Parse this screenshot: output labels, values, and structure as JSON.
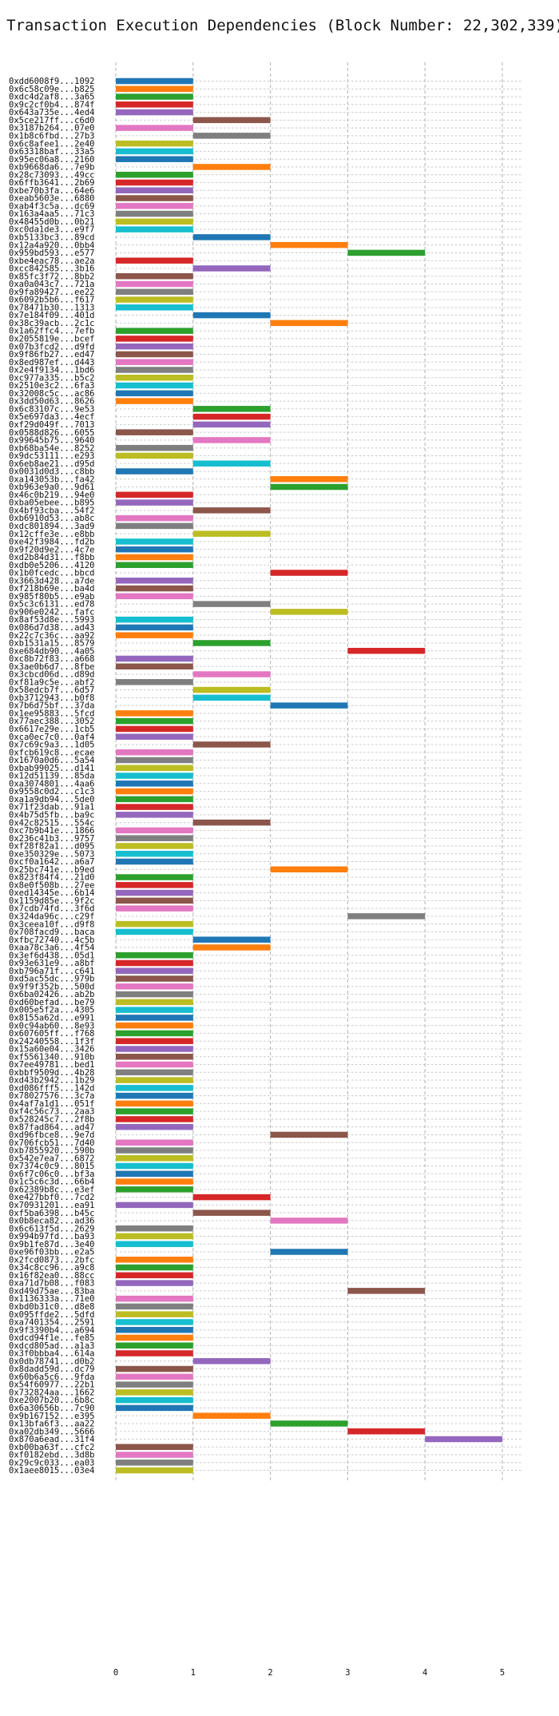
{
  "chart_data": {
    "type": "bar",
    "orientation": "horizontal",
    "title": "Transaction Execution Dependencies (Block Number: 22,302,339)",
    "xlabel": "",
    "ylabel": "",
    "xlim": [
      0,
      5
    ],
    "xticks": [
      0,
      1,
      2,
      3,
      4,
      5
    ],
    "grid": true,
    "palette": [
      "#1f77b4",
      "#ff7f0e",
      "#2ca02c",
      "#d62728",
      "#9467bd",
      "#8c564b",
      "#e377c2",
      "#7f7f7f",
      "#bcbd22",
      "#17becf"
    ],
    "categories": [
      "0xdd6008f9...1092",
      "0x6c58c09e...b825",
      "0xdc4d2af8...3a65",
      "0x9c2cf0b4...874f",
      "0x643a735e...4ed4",
      "0x5ce217ff...c6d0",
      "0x3187b264...07e0",
      "0x1b8c6fbd...27b3",
      "0x6c8afee1...2e40",
      "0x63318baf...33a5",
      "0x95ec06a8...2160",
      "0xb9668da6...7e9b",
      "0x28c73093...49cc",
      "0x6ffb3641...2b69",
      "0xbe70b3fa...64e6",
      "0xeab5603e...6880",
      "0xab4f3c5a...dc69",
      "0x163a4aa5...71c3",
      "0x48455d0b...0b21",
      "0xc0da1de3...e9f7",
      "0xb5133bc3...89cd",
      "0x12a4a920...0bb4",
      "0x959bd593...e577",
      "0xbe4eac78...ae2a",
      "0xcc842585...3b16",
      "0x85fc3f72...8bb2",
      "0xa0a043c7...721a",
      "0x9fa89427...ee22",
      "0x6092b5b6...f617",
      "0x78471b30...1313",
      "0x7e184f09...401d",
      "0x38c39acb...2c1c",
      "0x1a62ffc4...7efb",
      "0x2055819e...bcef",
      "0x07b3fcd2...d9fd",
      "0x9f86fb27...ed47",
      "0x8ed987ef...d443",
      "0x2e4f9134...1bd6",
      "0xc977a335...b5c2",
      "0x2510e3c2...6fa3",
      "0x32008c5c...ac86",
      "0x3dd50d63...8626",
      "0x6c83107c...9e53",
      "0x5e697da3...4ecf",
      "0xf29d049f...7013",
      "0x0588d826...6055",
      "0x99645b75...9640",
      "0xb68ba54e...8252",
      "0x9dc53111...e293",
      "0x6eb8ae21...d95d",
      "0x0031d0d3...c8bb",
      "0xa143053b...fa42",
      "0xb963e9a0...9d61",
      "0x46c0b219...94e0",
      "0xba05ebee...b895",
      "0x4bf93cba...54f2",
      "0xb6910d53...ab8c",
      "0xdc801894...3ad9",
      "0x12cffe3e...e8bb",
      "0xe42f3984...fd2b",
      "0x9f20d9e2...4c7e",
      "0xd2b84d31...f8bb",
      "0xdb0e5206...4120",
      "0x1b0fcedc...bbcd",
      "0x3663d428...a7de",
      "0xf218b69e...ba4d",
      "0x985f80b5...e9ab",
      "0x5c3c6131...ed78",
      "0x906e0242...fafc",
      "0x8af53d8e...5993",
      "0x086d7d38...ad43",
      "0x22c7c36c...aa92",
      "0xb1531a15...8579",
      "0xe684db90...4a05",
      "0xc8b72f83...a668",
      "0x3ae0b6d7...8fbe",
      "0x3cbcd06d...d89d",
      "0xf81a9c5e...abf2",
      "0x58edcb7f...6d57",
      "0xb3712943...b0f8",
      "0x7b6d75bf...37da",
      "0x1ee95883...5fcd",
      "0x77aec388...3052",
      "0x6617e29e...1cb5",
      "0xca0ec7c0...0af4",
      "0x7c69c9a3...1d05",
      "0xfcb619c8...ecae",
      "0x1670a0d6...5a54",
      "0xbab99025...d141",
      "0x12d51139...85da",
      "0xa3074801...4aa6",
      "0x9558c0d2...c1c3",
      "0xa1a9db94...5de0",
      "0x71f23dab...91a1",
      "0x4b75d5fb...ba9c",
      "0x42c82515...554c",
      "0xc7b9b41e...1866",
      "0x236c41b3...9757",
      "0xf28f82a1...d095",
      "0xe350329e...5073",
      "0xcf0a1642...a6a7",
      "0x25bc741e...b9ed",
      "0x823f84f4...21d0",
      "0x8e0f508b...27ee",
      "0xed14345e...6b14",
      "0x1159d85e...9f2c",
      "0x7cdb74fd...3f6d",
      "0x324da96c...c29f",
      "0x3ceea10f...d9f8",
      "0x708facd9...baca",
      "0xfbc72740...4c5b",
      "0xaa78c3a6...4f54",
      "0x3ef6d438...05d1",
      "0x93e631e9...a8bf",
      "0xb796a71f...c641",
      "0xd5ac55dc...979b",
      "0x9f9f352b...500d",
      "0x6ba02426...ab2b",
      "0xd60befad...be79",
      "0x005e5f2a...4305",
      "0x8155a62d...e991",
      "0x0c94ab60...8e93",
      "0x607605ff...f768",
      "0x24240558...1f3f",
      "0x15a60e04...3426",
      "0xf5561340...910b",
      "0x7ee49781...bed1",
      "0xbbf9509d...4b28",
      "0xd43b2942...1b29",
      "0xd086fff5...142d",
      "0x78027576...3c7a",
      "0x4af7a1d1...051f",
      "0xf4c56c73...2aa3",
      "0x528245c7...2f8b",
      "0x87fad864...ad47",
      "0xd96fbce8...9e7d",
      "0x706fcb51...7d40",
      "0xb7855920...590b",
      "0x542e7ea7...6872",
      "0x7374c0c9...8015",
      "0x6f7c06c0...bf3a",
      "0x1c5c6c3d...66b4",
      "0x62389b8c...e3ef",
      "0xe427bbf0...7cd2",
      "0x70931201...ea91",
      "0xf5ba6398...b45c",
      "0x0b8eca82...ad36",
      "0x6c613f5d...2629",
      "0x994b97fd...ba93",
      "0x9b1fe87d...3e40",
      "0xe96f03bb...e2a5",
      "0x2fcd0873...2bfc",
      "0x34c8cc96...a9c8",
      "0x16f82ea0...88cc",
      "0xa71d7b08...f083",
      "0xd49d75ae...83ba",
      "0x1136333a...71e0",
      "0xbd0b31c0...d8e8",
      "0x095ffde2...5dfd",
      "0xa7401354...2591",
      "0x9f3390b4...a694",
      "0xdcd94f1e...fe85",
      "0xdcd805ad...a1a3",
      "0x3f0bbba4...614a",
      "0x0db78741...d0b2",
      "0x8dadd59d...dc79",
      "0x60b6a5c6...9fda",
      "0x54f60977...22b1",
      "0x732824aa...1662",
      "0xe2007b20...6b8c",
      "0x6a30656b...7c90",
      "0x9b167152...e395",
      "0x13bfa6f3...aa22",
      "0xa02db349...5666",
      "0x870a6ead...31f4",
      "0xb00ba63f...cfc2",
      "0xf0182ebd...3d8b",
      "0x29c9c033...ea03",
      "0x1aee8015...03e4"
    ],
    "starts": [
      0,
      0,
      0,
      0,
      0,
      1,
      0,
      1,
      0,
      0,
      0,
      1,
      0,
      0,
      0,
      0,
      0,
      0,
      0,
      0,
      1,
      2,
      3,
      0,
      1,
      0,
      0,
      0,
      0,
      0,
      1,
      2,
      0,
      0,
      0,
      0,
      0,
      0,
      0,
      0,
      0,
      0,
      1,
      1,
      1,
      0,
      1,
      0,
      0,
      1,
      0,
      2,
      2,
      0,
      0,
      1,
      0,
      0,
      1,
      0,
      0,
      0,
      0,
      2,
      0,
      0,
      0,
      1,
      2,
      0,
      0,
      0,
      1,
      3,
      0,
      0,
      1,
      0,
      1,
      1,
      2,
      0,
      0,
      0,
      0,
      1,
      0,
      0,
      0,
      0,
      0,
      0,
      0,
      0,
      0,
      1,
      0,
      0,
      0,
      0,
      0,
      2,
      0,
      0,
      0,
      0,
      0,
      3,
      0,
      0,
      1,
      1,
      0,
      0,
      0,
      0,
      0,
      0,
      0,
      0,
      0,
      0,
      0,
      0,
      0,
      0,
      0,
      0,
      0,
      0,
      0,
      0,
      0,
      0,
      0,
      2,
      0,
      0,
      0,
      0,
      0,
      0,
      0,
      1,
      0,
      1,
      2,
      0,
      0,
      0,
      2,
      0,
      0,
      0,
      0,
      3,
      0,
      0,
      0,
      0,
      0,
      0,
      0,
      0,
      1,
      0,
      0,
      0,
      0,
      0,
      0,
      1,
      2,
      3,
      4,
      0,
      0,
      0,
      0
    ],
    "values": [
      1,
      1,
      1,
      1,
      1,
      2,
      1,
      2,
      1,
      1,
      1,
      2,
      1,
      1,
      1,
      1,
      1,
      1,
      1,
      1,
      2,
      3,
      4,
      1,
      2,
      1,
      1,
      1,
      1,
      1,
      2,
      3,
      1,
      1,
      1,
      1,
      1,
      1,
      1,
      1,
      1,
      1,
      2,
      2,
      2,
      1,
      2,
      1,
      1,
      2,
      1,
      3,
      3,
      1,
      1,
      2,
      1,
      1,
      2,
      1,
      1,
      1,
      1,
      3,
      1,
      1,
      1,
      2,
      3,
      1,
      1,
      1,
      2,
      4,
      1,
      1,
      2,
      1,
      2,
      2,
      3,
      1,
      1,
      1,
      1,
      2,
      1,
      1,
      1,
      1,
      1,
      1,
      1,
      1,
      1,
      2,
      1,
      1,
      1,
      1,
      1,
      3,
      1,
      1,
      1,
      1,
      1,
      4,
      1,
      1,
      2,
      2,
      1,
      1,
      1,
      1,
      1,
      1,
      1,
      1,
      1,
      1,
      1,
      1,
      1,
      1,
      1,
      1,
      1,
      1,
      1,
      1,
      1,
      1,
      1,
      3,
      1,
      1,
      1,
      1,
      1,
      1,
      1,
      2,
      1,
      2,
      3,
      1,
      1,
      1,
      3,
      1,
      1,
      1,
      1,
      4,
      1,
      1,
      1,
      1,
      1,
      1,
      1,
      1,
      2,
      1,
      1,
      1,
      1,
      1,
      1,
      2,
      3,
      4,
      5,
      1,
      1,
      1,
      1
    ],
    "colors": [
      0,
      1,
      2,
      3,
      4,
      5,
      6,
      7,
      8,
      9,
      0,
      1,
      2,
      3,
      4,
      5,
      6,
      7,
      8,
      9,
      0,
      1,
      2,
      3,
      4,
      5,
      6,
      7,
      8,
      9,
      0,
      1,
      2,
      3,
      4,
      5,
      6,
      7,
      8,
      9,
      0,
      1,
      2,
      3,
      4,
      5,
      6,
      7,
      8,
      9,
      0,
      1,
      2,
      3,
      4,
      5,
      6,
      7,
      8,
      9,
      0,
      1,
      2,
      3,
      4,
      5,
      6,
      7,
      8,
      9,
      0,
      1,
      2,
      3,
      4,
      5,
      6,
      7,
      8,
      9,
      0,
      1,
      2,
      3,
      4,
      5,
      6,
      7,
      8,
      9,
      0,
      1,
      2,
      3,
      4,
      5,
      6,
      7,
      8,
      9,
      0,
      1,
      2,
      3,
      4,
      5,
      6,
      7,
      8,
      9,
      0,
      1,
      2,
      3,
      4,
      5,
      6,
      7,
      8,
      9,
      0,
      1,
      2,
      3,
      4,
      5,
      6,
      7,
      8,
      9,
      0,
      1,
      2,
      3,
      4,
      5,
      6,
      7,
      8,
      9,
      0,
      1,
      2,
      3,
      4,
      5,
      6,
      7,
      8,
      9,
      0,
      1,
      2,
      3,
      4,
      5,
      6,
      7,
      8,
      9,
      0,
      1,
      2,
      3,
      4,
      5,
      6,
      7,
      8,
      9,
      0,
      1,
      2,
      3,
      4,
      5,
      6,
      7,
      8
    ]
  }
}
